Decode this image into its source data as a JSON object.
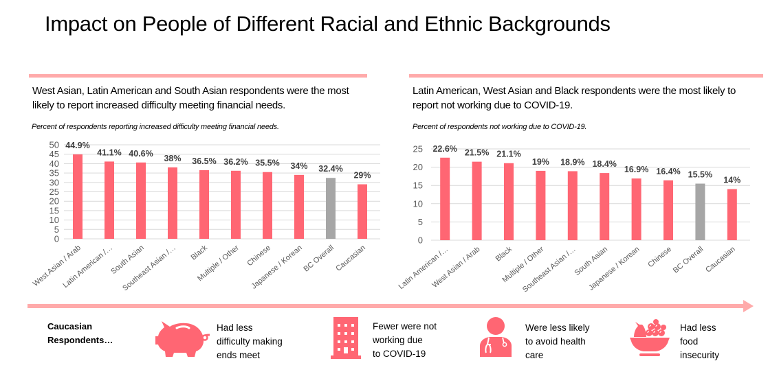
{
  "page": {
    "title": "Impact on People of Different Racial and Ethnic Backgrounds"
  },
  "panels": [
    {
      "headline": "West Asian, Latin American and South Asian respondents were the most likely to report increased difficulty meeting financial needs.",
      "subtitle": "Percent of respondents reporting increased difficulty meeting financial needs."
    },
    {
      "headline": "Latin American, West Asian and Black respondents were the most likely to report not working due to COVID-19.",
      "subtitle": "Percent of respondents not working due to COVID-19."
    }
  ],
  "colors": {
    "bar": "#ff6673",
    "highlight_bar": "#a6a6a6",
    "accent_rule": "#ffaaaa",
    "icon": "#ff6673",
    "grid": "#d9d9d9"
  },
  "chart_data": [
    {
      "type": "bar",
      "title": "Percent of respondents reporting increased difficulty meeting financial needs.",
      "xlabel": "",
      "ylabel": "",
      "ylim": [
        0,
        50
      ],
      "yticks": [
        0,
        5,
        10,
        15,
        20,
        25,
        30,
        35,
        40,
        45,
        50
      ],
      "grid": true,
      "categories": [
        "West Asian / Arab",
        "Latin American /…",
        "South Asian",
        "Southeast Asian /…",
        "Black",
        "Multiple / Other",
        "Chinese",
        "Japanese / Korean",
        "BC Overall",
        "Caucasian"
      ],
      "values": [
        44.9,
        41.1,
        40.6,
        38,
        36.5,
        36.2,
        35.5,
        34,
        32.4,
        29
      ],
      "data_labels": [
        "44.9%",
        "41.1%",
        "40.6%",
        "38%",
        "36.5%",
        "36.2%",
        "35.5%",
        "34%",
        "32.4%",
        "29%"
      ],
      "highlight_category": "BC Overall"
    },
    {
      "type": "bar",
      "title": "Percent of respondents not working due to COVID-19.",
      "xlabel": "",
      "ylabel": "",
      "ylim": [
        0,
        25
      ],
      "yticks": [
        0,
        5,
        10,
        15,
        20,
        25
      ],
      "grid": true,
      "categories": [
        "Latin American /…",
        "West Asian / Arab",
        "Black",
        "Multiple / Other",
        "Southeast Asian /…",
        "South Asian",
        "Japanese / Korean",
        "Chinese",
        "BC Overall",
        "Caucasian"
      ],
      "values": [
        22.6,
        21.5,
        21.1,
        19,
        18.9,
        18.4,
        16.9,
        16.4,
        15.5,
        14
      ],
      "data_labels": [
        "22.6%",
        "21.5%",
        "21.1%",
        "19%",
        "18.9%",
        "18.4%",
        "16.9%",
        "16.4%",
        "15.5%",
        "14%"
      ],
      "highlight_category": "BC Overall"
    }
  ],
  "summary": {
    "lead": "Caucasian Respondents…",
    "items": [
      {
        "icon": "piggy-bank-icon",
        "text_lines": [
          "Had less",
          "difficulty making",
          "ends meet"
        ]
      },
      {
        "icon": "building-icon",
        "text_lines": [
          "Fewer were not",
          "working due",
          "to COVID-19"
        ]
      },
      {
        "icon": "doctor-icon",
        "text_lines": [
          "Were less likely",
          "to avoid health",
          "care"
        ]
      },
      {
        "icon": "fruit-bowl-icon",
        "text_lines": [
          "Had less",
          "food",
          "insecurity"
        ]
      }
    ]
  }
}
